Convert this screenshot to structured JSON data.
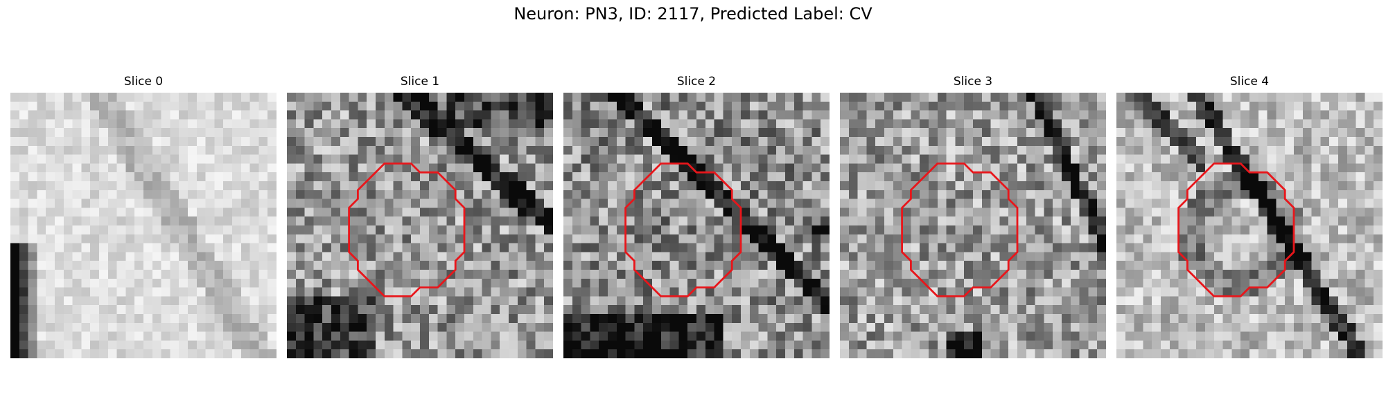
{
  "figure": {
    "title": "Neuron: PN3, ID: 2117, Predicted Label: CV"
  },
  "panels": [
    {
      "title": "Slice 0",
      "image": "grayscale-em-patch",
      "has_contour": false,
      "seed": 11,
      "brightness": 0.86,
      "contrast": 0.1
    },
    {
      "title": "Slice 1",
      "image": "grayscale-em-patch",
      "has_contour": true,
      "seed": 23,
      "brightness": 0.6,
      "contrast": 0.28
    },
    {
      "title": "Slice 2",
      "image": "grayscale-em-patch",
      "has_contour": true,
      "seed": 37,
      "brightness": 0.56,
      "contrast": 0.3
    },
    {
      "title": "Slice 3",
      "image": "grayscale-em-patch",
      "has_contour": true,
      "seed": 53,
      "brightness": 0.62,
      "contrast": 0.28
    },
    {
      "title": "Slice 4",
      "image": "grayscale-em-patch",
      "has_contour": true,
      "seed": 71,
      "brightness": 0.74,
      "contrast": 0.2
    }
  ],
  "colors": {
    "contour": "#e8161b",
    "background": "#ffffff"
  }
}
